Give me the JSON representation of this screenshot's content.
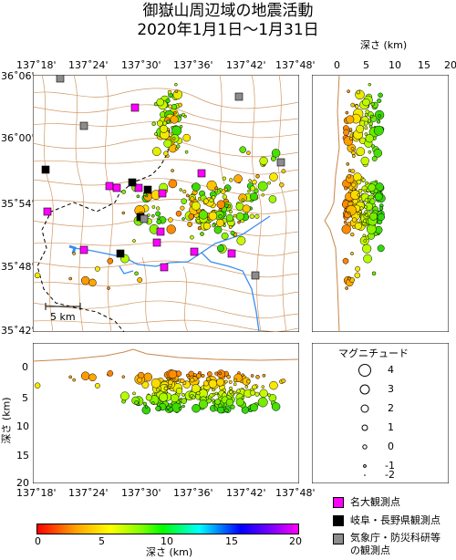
{
  "title_line1": "御嶽山周辺域の地震活動",
  "title_line2": "2020年1月1日～1月31日",
  "map": {
    "lon_ticks": [
      "137˚18'",
      "137˚24'",
      "137˚30'",
      "137˚36'",
      "137˚42'",
      "137˚48'"
    ],
    "lat_ticks": [
      "36˚06'",
      "36˚00'",
      "35˚54'",
      "35˚48'",
      "35˚42'"
    ],
    "scale_label": "5 km"
  },
  "depth_panel_right": {
    "title": "深さ (km)",
    "ticks": [
      "0",
      "5",
      "10",
      "15",
      "20"
    ]
  },
  "depth_panel_bottom": {
    "ylabel": "深さ (km)",
    "ticks": [
      "0",
      "5",
      "10",
      "15",
      "20"
    ],
    "lon_ticks": [
      "137˚18'",
      "137˚24'",
      "137˚30'",
      "137˚36'",
      "137˚42'",
      "137˚48'"
    ]
  },
  "magnitude_legend": {
    "title": "マグニチュード",
    "items": [
      "4",
      "3",
      "2",
      "1",
      "0",
      "-1",
      "-2"
    ]
  },
  "station_legend": {
    "items": [
      {
        "label": "名大観測点",
        "color": "#ff00ff"
      },
      {
        "label": "岐阜・長野県観測点",
        "color": "#000000"
      },
      {
        "label": "気象庁・防災科研等",
        "label2": "の観測点",
        "color": "#8c8c8c"
      }
    ]
  },
  "colorbar": {
    "label": "深さ (km)",
    "ticks": [
      "0",
      "5",
      "10",
      "15",
      "20"
    ],
    "colors": [
      "#ff0000",
      "#ffa500",
      "#ffff00",
      "#7fff00",
      "#00ff00",
      "#00ffff",
      "#0000ff",
      "#8000ff",
      "#ff00ff"
    ]
  }
}
